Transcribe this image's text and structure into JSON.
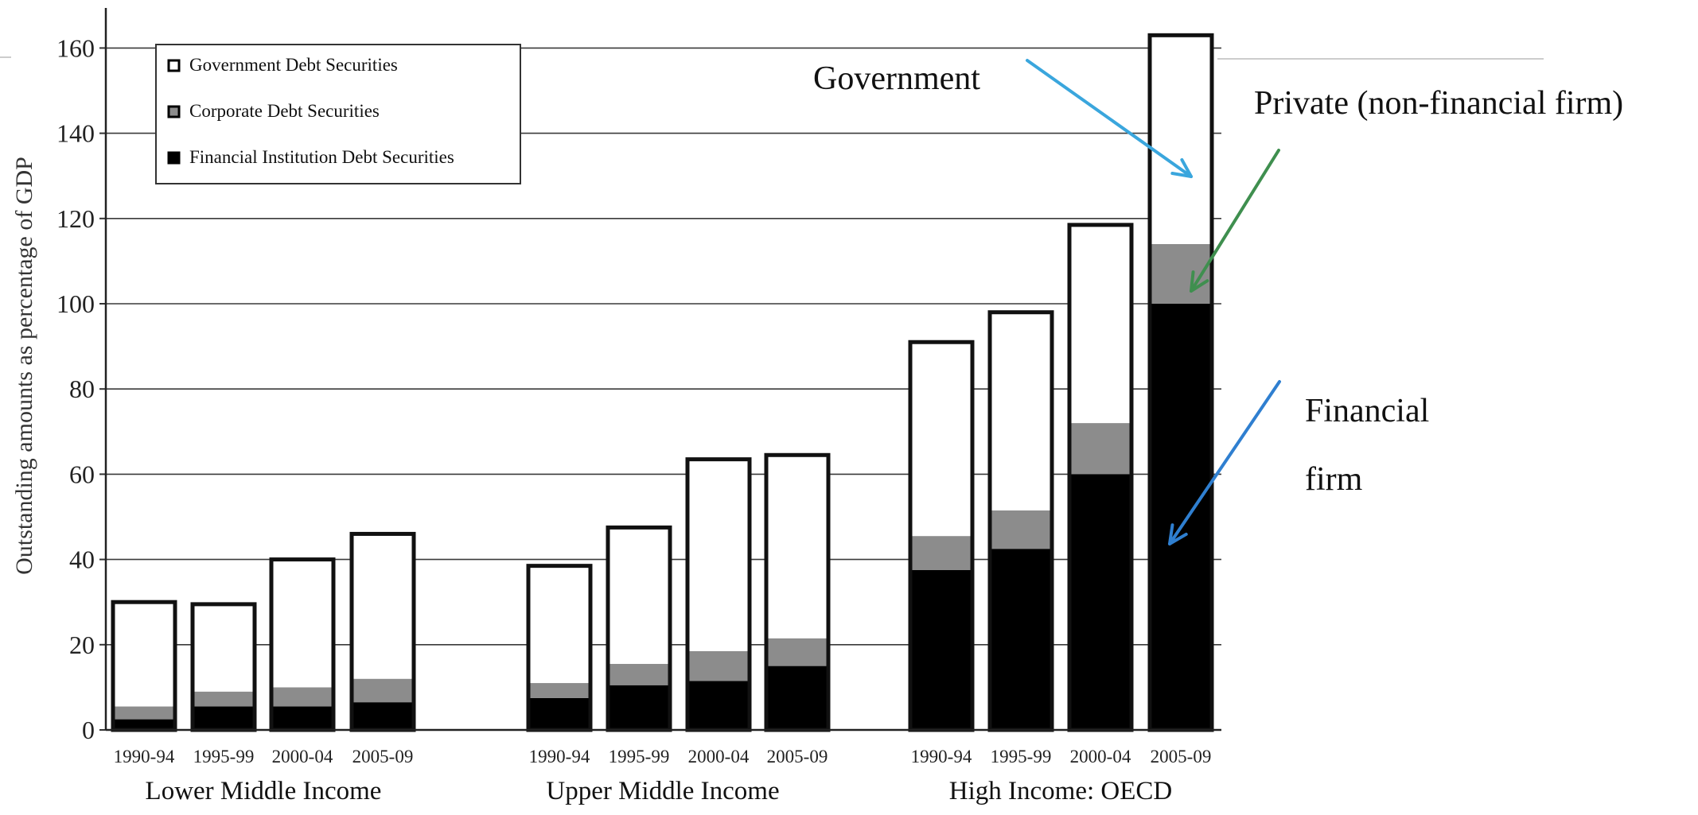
{
  "chart_data": {
    "type": "bar",
    "stacked": true,
    "ylabel": "Outstanding amounts as percentage of GDP",
    "ylim": [
      0,
      170
    ],
    "yticks": [
      0,
      20,
      40,
      60,
      80,
      100,
      120,
      140,
      160
    ],
    "grid": true,
    "legend_position": "top-left",
    "groups": [
      {
        "name": "Lower Middle Income",
        "categories": [
          "1990-94",
          "1995-99",
          "2000-04",
          "2005-09"
        ]
      },
      {
        "name": "Upper Middle Income",
        "categories": [
          "1990-94",
          "1995-99",
          "2000-04",
          "2005-09"
        ]
      },
      {
        "name": "High Income: OECD",
        "categories": [
          "1990-94",
          "1995-99",
          "2000-04",
          "2005-09"
        ]
      }
    ],
    "series": [
      {
        "name": "Financial Institution Debt Securities",
        "color": "#000000",
        "values": [
          2.5,
          5.5,
          5.5,
          6.5,
          7.5,
          10.5,
          11.5,
          15,
          37.5,
          42.5,
          60,
          100
        ]
      },
      {
        "name": "Corporate Debt Securities",
        "color": "#8c8c8c",
        "values": [
          3,
          3.5,
          4.5,
          5.5,
          3.5,
          5,
          7,
          6.5,
          8,
          9,
          12,
          14
        ]
      },
      {
        "name": "Government Debt Securities",
        "color": "#ffffff",
        "values": [
          24.5,
          20.5,
          30,
          34,
          27.5,
          32,
          45,
          43,
          45.5,
          46.5,
          46.5,
          49
        ]
      }
    ],
    "legend": [
      {
        "label": "Government Debt Securities",
        "color": "#ffffff"
      },
      {
        "label": "Corporate Debt Securities",
        "color": "#8c8c8c"
      },
      {
        "label": "Financial Institution Debt Securities",
        "color": "#000000"
      }
    ],
    "annotations": [
      {
        "text": "Government",
        "arrow_color": "#3aa6dd"
      },
      {
        "text": "Private (non-financial firm)",
        "arrow_color": "#3f8f4f"
      },
      {
        "text": "Financial",
        "arrow_color": "#2f7fd0"
      },
      {
        "text": "firm",
        "arrow_color": "#2f7fd0"
      }
    ]
  }
}
